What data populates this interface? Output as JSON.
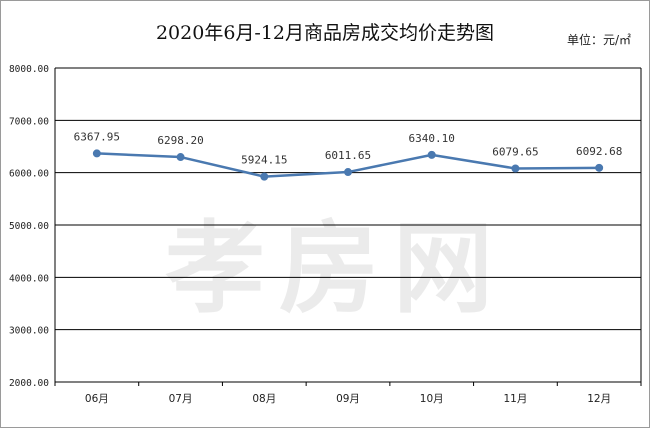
{
  "chart_data": {
    "type": "line",
    "title": "2020年6月-12月商品房成交均价走势图",
    "unit_label": "单位：元/㎡",
    "watermark": "孝房网",
    "categories": [
      "06月",
      "07月",
      "08月",
      "09月",
      "10月",
      "11月",
      "12月"
    ],
    "series": [
      {
        "values": [
          6367.95,
          6298.2,
          5924.15,
          6011.65,
          6340.1,
          6079.65,
          6092.68
        ],
        "labels": [
          "6367.95",
          "6298.20",
          "5924.15",
          "6011.65",
          "6340.10",
          "6079.65",
          "6092.68"
        ],
        "color": "#4a79b0"
      }
    ],
    "yticks": [
      {
        "value": 2000,
        "label": "2000.00"
      },
      {
        "value": 3000,
        "label": "3000.00"
      },
      {
        "value": 4000,
        "label": "4000.00"
      },
      {
        "value": 5000,
        "label": "5000.00"
      },
      {
        "value": 6000,
        "label": "6000.00"
      },
      {
        "value": 7000,
        "label": "7000.00"
      },
      {
        "value": 8000,
        "label": "8000.00"
      }
    ],
    "ylim": [
      2000,
      8000
    ],
    "grid": true,
    "legend": "none"
  }
}
